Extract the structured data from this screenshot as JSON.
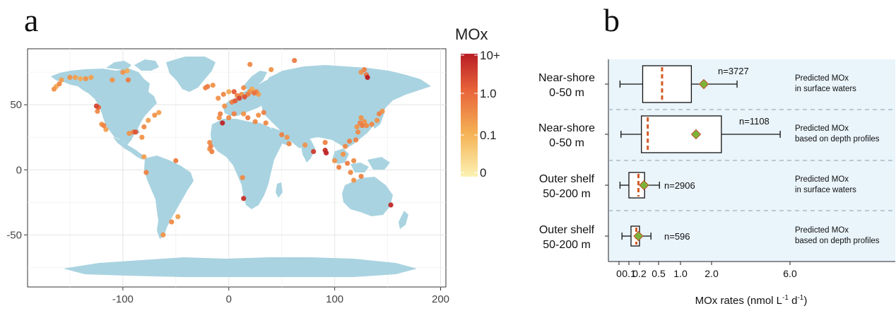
{
  "panel_a_label": "a",
  "panel_b_label": "b",
  "chart_data": [
    {
      "type": "scatter",
      "subtype": "map",
      "x_ticks": [
        -100,
        0,
        100,
        200
      ],
      "y_ticks": [
        -50,
        0,
        50
      ],
      "xlim": [
        -190,
        205
      ],
      "ylim": [
        -90,
        93
      ],
      "grid": true,
      "legend": {
        "title": "MOx",
        "labels": [
          "10+",
          "1.0",
          "0.1",
          "0"
        ],
        "colors": [
          "#b81d24",
          "#e8643a",
          "#f5b255",
          "#fbf2b3"
        ],
        "placement": "right"
      },
      "points": [
        {
          "x": -160,
          "y": 66,
          "v": 0.4
        },
        {
          "x": -163,
          "y": 64,
          "v": 0.15
        },
        {
          "x": -165,
          "y": 62,
          "v": 0.3
        },
        {
          "x": -158,
          "y": 69,
          "v": 0.2
        },
        {
          "x": -150,
          "y": 71,
          "v": 0.3
        },
        {
          "x": -145,
          "y": 71,
          "v": 0.2
        },
        {
          "x": -140,
          "y": 70,
          "v": 0.15
        },
        {
          "x": -135,
          "y": 70,
          "v": 0.3
        },
        {
          "x": -130,
          "y": 71,
          "v": 0.2
        },
        {
          "x": -100,
          "y": 75,
          "v": 0.3
        },
        {
          "x": -96,
          "y": 76,
          "v": 0.15
        },
        {
          "x": -110,
          "y": 69,
          "v": 0.3
        },
        {
          "x": -95,
          "y": 69,
          "v": 0.6
        },
        {
          "x": -125,
          "y": 49,
          "v": 3
        },
        {
          "x": -124,
          "y": 45,
          "v": 0.4
        },
        {
          "x": -123,
          "y": 48,
          "v": 1.2
        },
        {
          "x": -118,
          "y": 34,
          "v": 0.5
        },
        {
          "x": -120,
          "y": 35,
          "v": 0.3
        },
        {
          "x": -116,
          "y": 31,
          "v": 0.2
        },
        {
          "x": -90,
          "y": 29,
          "v": 0.5
        },
        {
          "x": -94,
          "y": 28,
          "v": 0.3
        },
        {
          "x": -88,
          "y": 29,
          "v": 2
        },
        {
          "x": -82,
          "y": 25,
          "v": 0.3
        },
        {
          "x": -80,
          "y": 33,
          "v": 0.4
        },
        {
          "x": -76,
          "y": 38,
          "v": 0.2
        },
        {
          "x": -70,
          "y": 42,
          "v": 0.3
        },
        {
          "x": -66,
          "y": 44,
          "v": 0.2
        },
        {
          "x": -80,
          "y": 10,
          "v": 0.2
        },
        {
          "x": -78,
          "y": -2,
          "v": 0.5
        },
        {
          "x": -50,
          "y": 7,
          "v": 0.6
        },
        {
          "x": -48,
          "y": -36,
          "v": 0.2
        },
        {
          "x": -54,
          "y": -40,
          "v": 0.4
        },
        {
          "x": -62,
          "y": -50,
          "v": 0.3
        },
        {
          "x": -20,
          "y": 64,
          "v": 0.6
        },
        {
          "x": -15,
          "y": 65,
          "v": 0.3
        },
        {
          "x": -22,
          "y": 63,
          "v": 0.5
        },
        {
          "x": -10,
          "y": 55,
          "v": 0.3
        },
        {
          "x": -5,
          "y": 58,
          "v": 0.4
        },
        {
          "x": 0,
          "y": 60,
          "v": 0.15
        },
        {
          "x": 5,
          "y": 60,
          "v": 1.5
        },
        {
          "x": 8,
          "y": 57,
          "v": 0.5
        },
        {
          "x": 10,
          "y": 55,
          "v": 3
        },
        {
          "x": 12,
          "y": 58,
          "v": 0.3
        },
        {
          "x": 15,
          "y": 56,
          "v": 2
        },
        {
          "x": 18,
          "y": 58,
          "v": 0.6
        },
        {
          "x": 20,
          "y": 60,
          "v": 0.3
        },
        {
          "x": 22,
          "y": 62,
          "v": 0.15
        },
        {
          "x": 24,
          "y": 59,
          "v": 0.8
        },
        {
          "x": 26,
          "y": 60,
          "v": 0.4
        },
        {
          "x": 28,
          "y": 58,
          "v": 0.2
        },
        {
          "x": 14,
          "y": 63,
          "v": 0.4
        },
        {
          "x": 3,
          "y": 52,
          "v": 0.6
        },
        {
          "x": 6,
          "y": 53,
          "v": 1.5
        },
        {
          "x": -4,
          "y": 49,
          "v": 0.3
        },
        {
          "x": -8,
          "y": 43,
          "v": 0.5
        },
        {
          "x": -9,
          "y": 40,
          "v": 0.3
        },
        {
          "x": 0,
          "y": 40,
          "v": 0.4
        },
        {
          "x": 5,
          "y": 43,
          "v": 0.5
        },
        {
          "x": 14,
          "y": 43,
          "v": 0.3
        },
        {
          "x": 18,
          "y": 40,
          "v": 0.6
        },
        {
          "x": 25,
          "y": 37,
          "v": 0.4
        },
        {
          "x": 28,
          "y": 42,
          "v": 0.3
        },
        {
          "x": 33,
          "y": 44,
          "v": 0.5
        },
        {
          "x": 35,
          "y": 36,
          "v": 0.4
        },
        {
          "x": -6,
          "y": 36,
          "v": 8
        },
        {
          "x": 20,
          "y": 81,
          "v": 0.4
        },
        {
          "x": 40,
          "y": 77,
          "v": 0.3
        },
        {
          "x": 62,
          "y": 84,
          "v": 0.6
        },
        {
          "x": 128,
          "y": 77,
          "v": 0.5
        },
        {
          "x": 130,
          "y": 73,
          "v": 0.7
        },
        {
          "x": 131,
          "y": 71,
          "v": 12
        },
        {
          "x": 125,
          "y": 75,
          "v": 0.3
        },
        {
          "x": -18,
          "y": 21,
          "v": 0.4
        },
        {
          "x": -17,
          "y": 18,
          "v": 0.5
        },
        {
          "x": -18,
          "y": 16,
          "v": 0.3
        },
        {
          "x": -16,
          "y": 14,
          "v": 0.5
        },
        {
          "x": 13,
          "y": -6,
          "v": 0.4
        },
        {
          "x": 14,
          "y": -22,
          "v": 6
        },
        {
          "x": 50,
          "y": 27,
          "v": 0.5
        },
        {
          "x": 55,
          "y": 25,
          "v": 0.3
        },
        {
          "x": 57,
          "y": 20,
          "v": 0.4
        },
        {
          "x": 72,
          "y": 19,
          "v": 0.3
        },
        {
          "x": 80,
          "y": 14,
          "v": 4
        },
        {
          "x": 91,
          "y": 15,
          "v": 6
        },
        {
          "x": 92,
          "y": 13,
          "v": 8
        },
        {
          "x": 91,
          "y": 21,
          "v": 0.5
        },
        {
          "x": 100,
          "y": 7,
          "v": 0.3
        },
        {
          "x": 104,
          "y": 2,
          "v": 0.5
        },
        {
          "x": 108,
          "y": 12,
          "v": 0.3
        },
        {
          "x": 110,
          "y": 18,
          "v": 0.4
        },
        {
          "x": 114,
          "y": 22,
          "v": 0.5
        },
        {
          "x": 112,
          "y": 5,
          "v": 0.6
        },
        {
          "x": 118,
          "y": 7,
          "v": 0.4
        },
        {
          "x": 120,
          "y": 23,
          "v": 0.5
        },
        {
          "x": 122,
          "y": 29,
          "v": 0.4
        },
        {
          "x": 121,
          "y": 33,
          "v": 0.3
        },
        {
          "x": 124,
          "y": 36,
          "v": 0.5
        },
        {
          "x": 126,
          "y": 34,
          "v": 0.6
        },
        {
          "x": 128,
          "y": 37,
          "v": 0.3
        },
        {
          "x": 130,
          "y": 34,
          "v": 0.4
        },
        {
          "x": 135,
          "y": 35,
          "v": 0.4
        },
        {
          "x": 140,
          "y": 38,
          "v": 0.3
        },
        {
          "x": 142,
          "y": 43,
          "v": 0.5
        },
        {
          "x": 145,
          "y": 45,
          "v": 0.3
        },
        {
          "x": 125,
          "y": 40,
          "v": 0.3
        },
        {
          "x": 115,
          "y": -2,
          "v": 0.4
        },
        {
          "x": 118,
          "y": -8,
          "v": 0.3
        },
        {
          "x": 125,
          "y": -5,
          "v": 0.5
        },
        {
          "x": 153,
          "y": -27,
          "v": 7
        }
      ]
    },
    {
      "type": "box",
      "xlabel": "MOx rates (nmol L-1 d-1)",
      "x_ticks": [
        "0",
        "0.1",
        "0.2",
        "0.5",
        "1.0",
        "2.0",
        "6.0"
      ],
      "x_tick_values": [
        0,
        0.1,
        0.2,
        0.5,
        1.0,
        2.0,
        6.0
      ],
      "grid": false,
      "groups": [
        {
          "category": "Near-shore\n0-50 m",
          "note": "Predicted MOx\nin surface waters",
          "n_label": "n=3727",
          "whisker_low": 0.01,
          "q1": 0.25,
          "median": 0.58,
          "q3": 1.35,
          "whisker_high": 3.3,
          "mean": 1.75
        },
        {
          "category": "Near-shore\n0-50 m",
          "note": "Predicted MOx\nbased on depth profiles",
          "n_label": "n=1108",
          "whisker_low": 0.02,
          "q1": 0.23,
          "median": 0.33,
          "q3": 2.5,
          "whisker_high": 5.5,
          "mean": 1.5
        },
        {
          "category": "Outer shelf\n50-200 m",
          "note": "Predicted MOx\nin surface waters",
          "n_label": "n=2906",
          "whisker_low": 0.01,
          "q1": 0.1,
          "median": 0.19,
          "q3": 0.28,
          "whisker_high": 0.52,
          "mean": 0.27
        },
        {
          "category": "Outer shelf\n50-200 m",
          "note": "Predicted MOx\nbased on depth profiles",
          "n_label": "n=596",
          "whisker_low": 0.03,
          "q1": 0.12,
          "median": 0.17,
          "q3": 0.2,
          "whisker_high": 0.38,
          "mean": 0.19
        }
      ]
    }
  ]
}
